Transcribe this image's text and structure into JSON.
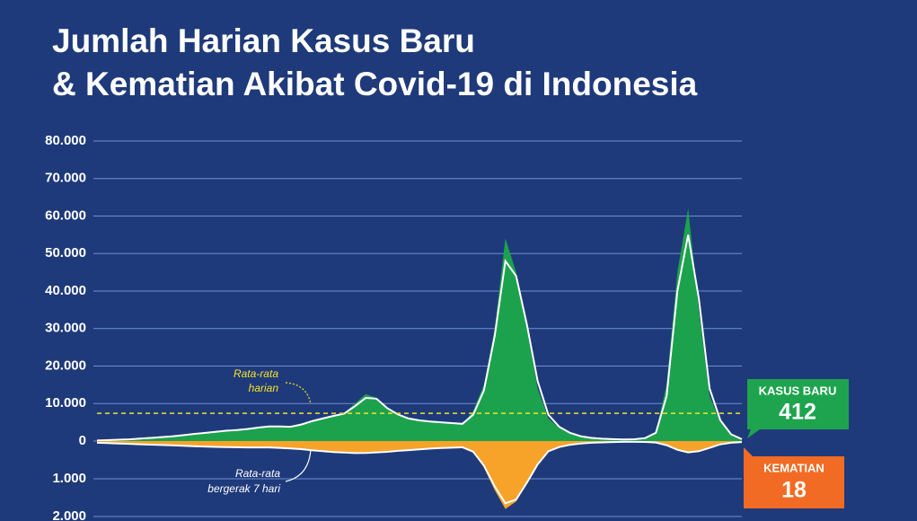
{
  "chart_data": {
    "type": "mirrored-area",
    "title": [
      "Jumlah Harian Kasus Baru",
      "& Kematian Akibat Covid-19 di Indonesia"
    ],
    "ylim": [
      0,
      80000
    ],
    "yticks": [
      0,
      {
        "value": 10000,
        "label": "10.000"
      },
      {
        "value": 20000,
        "label": "20.000"
      },
      {
        "value": 30000,
        "label": "30.000"
      },
      {
        "value": 40000,
        "label": "40.000"
      },
      {
        "value": 50000,
        "label": "50.000"
      },
      {
        "value": 60000,
        "label": "60.000"
      },
      {
        "value": 70000,
        "label": "70.000"
      },
      {
        "value": 80000,
        "label": "80.000"
      }
    ],
    "y2lim": [
      0,
      2000
    ],
    "y2_direction": "down",
    "y2ticks": [
      {
        "value": 1000,
        "label": "1.000"
      },
      {
        "value": 2000,
        "label": "2.000"
      }
    ],
    "grid": true,
    "series": [
      {
        "name": "KASUS BARU",
        "color": "#1ca24d",
        "values": [
          200,
          300,
          400,
          500,
          700,
          900,
          1100,
          1300,
          1600,
          2000,
          2200,
          2500,
          2800,
          3000,
          3300,
          3800,
          4100,
          3900,
          3800,
          4500,
          5500,
          6200,
          6800,
          7500,
          10000,
          12500,
          11500,
          8500,
          7000,
          5800,
          5400,
          5200,
          5100,
          4800,
          4500,
          8000,
          15000,
          30000,
          54000,
          45000,
          30000,
          14000,
          6000,
          3500,
          2000,
          1200,
          800,
          600,
          500,
          400,
          500,
          900,
          2500,
          15000,
          45000,
          62000,
          35000,
          12000,
          5000,
          1500,
          412
        ]
      },
      {
        "color": "#ffffff",
        "values": [
          150,
          250,
          350,
          450,
          650,
          850,
          1050,
          1250,
          1550,
          1900,
          2150,
          2450,
          2750,
          2950,
          3200,
          3600,
          3900,
          3900,
          3800,
          4400,
          5300,
          6000,
          6700,
          7300,
          9300,
          11500,
          11300,
          8800,
          7100,
          6000,
          5500,
          5200,
          5000,
          4800,
          4600,
          7000,
          13500,
          28000,
          48000,
          44000,
          31000,
          16000,
          7000,
          3800,
          2200,
          1300,
          850,
          620,
          500,
          420,
          480,
          800,
          2200,
          12000,
          40000,
          55000,
          38000,
          14000,
          5500,
          1800,
          500
        ]
      },
      {
        "name": "KEMATIAN",
        "color": "#f7a229",
        "axis": "y2",
        "values": [
          50,
          60,
          70,
          80,
          90,
          100,
          110,
          120,
          130,
          140,
          150,
          160,
          160,
          170,
          180,
          170,
          160,
          180,
          200,
          220,
          250,
          280,
          300,
          310,
          330,
          320,
          300,
          290,
          260,
          240,
          220,
          200,
          180,
          170,
          160,
          300,
          700,
          1300,
          1800,
          1600,
          1100,
          600,
          250,
          150,
          100,
          60,
          40,
          30,
          25,
          20,
          20,
          25,
          40,
          120,
          250,
          320,
          280,
          180,
          80,
          40,
          18
        ]
      },
      {
        "color": "#ffffff",
        "axis": "y2",
        "values": [
          45,
          55,
          65,
          75,
          85,
          95,
          105,
          115,
          125,
          135,
          145,
          155,
          160,
          165,
          170,
          170,
          170,
          180,
          195,
          215,
          245,
          270,
          290,
          305,
          320,
          315,
          300,
          285,
          260,
          240,
          220,
          200,
          185,
          175,
          165,
          280,
          650,
          1200,
          1650,
          1550,
          1100,
          620,
          270,
          160,
          100,
          65,
          45,
          35,
          27,
          22,
          21,
          24,
          38,
          110,
          230,
          300,
          270,
          180,
          85,
          45,
          25
        ]
      }
    ],
    "daily_average": {
      "value": 7400,
      "color": "#f5e12a",
      "label": [
        "Rata-rata",
        "harian"
      ]
    },
    "moving_average_label": [
      "Rata-rata",
      "bergerak 7 hari"
    ]
  }
}
